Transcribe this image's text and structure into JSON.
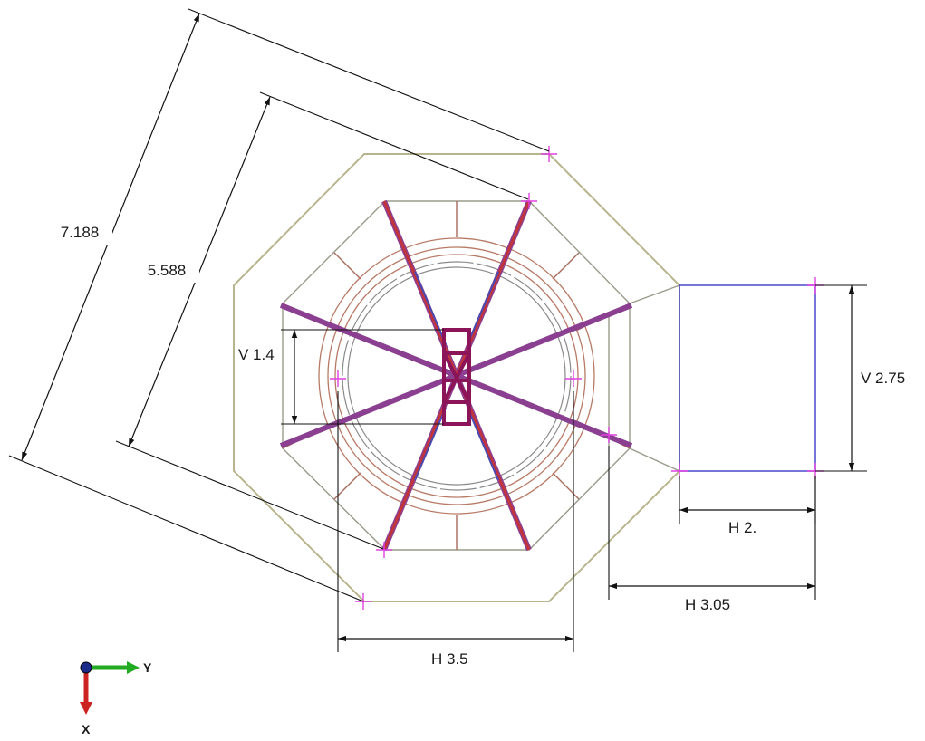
{
  "dimensions": {
    "long_diagonal": "7.188",
    "short_diagonal": "5.588",
    "hub_height": "V 1.4",
    "box_height": "V 2.75",
    "box_width": "H 2.",
    "offset_width": "H 3.05",
    "inner_width": "H 3.5"
  },
  "triad": {
    "y_label": "Y",
    "x_label": "X",
    "colors": {
      "y_axis": "#22aa22",
      "x_axis": "#cc2222",
      "origin": "#1a2a8a"
    }
  },
  "colors": {
    "outer_octagon": "#b8b58e",
    "ring": "#b87a66",
    "strut": "#8a3f90",
    "hub": "#8c1458",
    "box": "#4848c8",
    "marker": "#e040e0"
  }
}
